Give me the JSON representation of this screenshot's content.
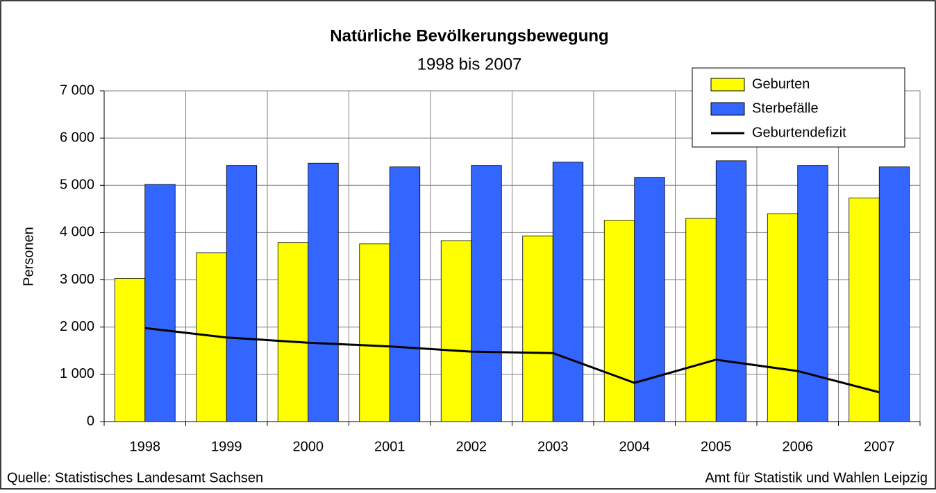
{
  "chart_data": {
    "type": "bar",
    "title": "Natürliche Bevölkerungsbewegung",
    "subtitle": "1998 bis 2007",
    "ylabel": "Personen",
    "categories": [
      "1998",
      "1999",
      "2000",
      "2001",
      "2002",
      "2003",
      "2004",
      "2005",
      "2006",
      "2007"
    ],
    "series": [
      {
        "name": "Geburten",
        "type": "bar",
        "color": "#ffff00",
        "values": [
          3030,
          3570,
          3790,
          3760,
          3830,
          3930,
          4260,
          4300,
          4400,
          4730
        ]
      },
      {
        "name": "Sterbefälle",
        "type": "bar",
        "color": "#3366ff",
        "values": [
          5020,
          5420,
          5470,
          5390,
          5420,
          5490,
          5170,
          5520,
          5420,
          5390
        ]
      },
      {
        "name": "Geburtendefizit",
        "type": "line",
        "color": "#000000",
        "values": [
          1980,
          1780,
          1670,
          1590,
          1480,
          1450,
          820,
          1310,
          1070,
          620
        ]
      }
    ],
    "ylim": [
      0,
      7000
    ],
    "yticks": [
      0,
      {
        "value": 1000,
        "label": "1 000"
      },
      {
        "value": 2000,
        "label": "2 000"
      },
      {
        "value": 3000,
        "label": "3 000"
      },
      {
        "value": 4000,
        "label": "4 000"
      },
      {
        "value": 5000,
        "label": "5 000"
      },
      {
        "value": 6000,
        "label": "6 000"
      },
      {
        "value": 7000,
        "label": "7 000"
      }
    ],
    "grid": true,
    "legend": "upper right",
    "source": "Quelle: Statistisches Landesamt Sachsen",
    "credit": "Amt für Statistik und Wahlen Leipzig"
  }
}
